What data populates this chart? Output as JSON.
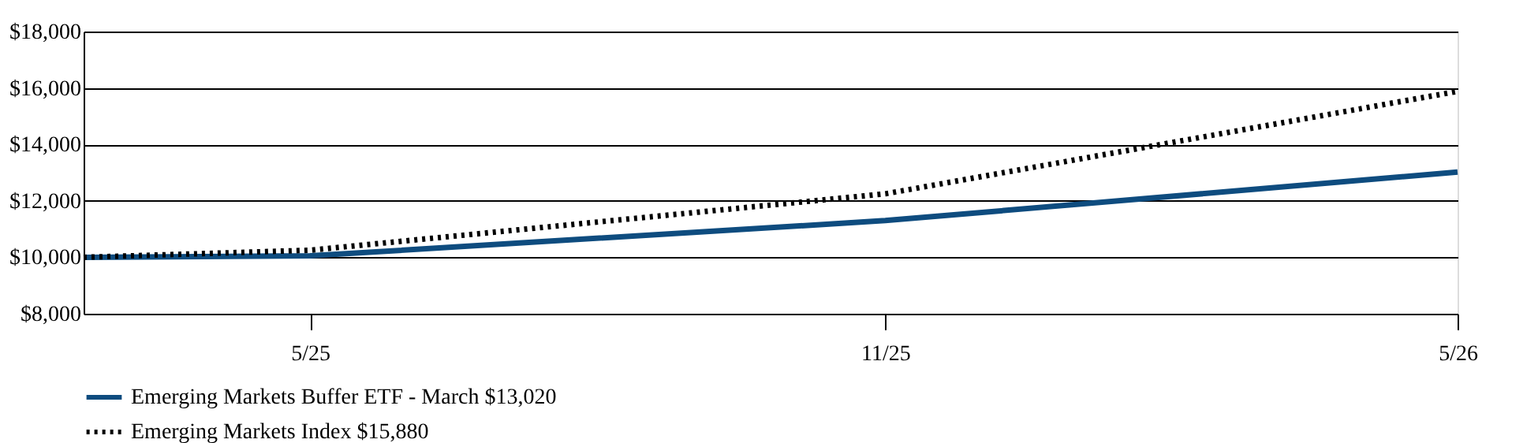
{
  "chart_data": {
    "type": "line",
    "x": [
      "2025-03-20",
      "2025-05-31",
      "2025-11-30",
      "2026-05-31"
    ],
    "series": [
      {
        "name": "Emerging Markets Buffer ETF - March $13,020",
        "color": "#0e4c7f",
        "line_style": "solid",
        "values": [
          10000,
          10050,
          11300,
          13020
        ]
      },
      {
        "name": "Emerging Markets Index $15,880",
        "color": "#000000",
        "line_style": "dotted",
        "values": [
          10000,
          10250,
          12250,
          15880
        ]
      }
    ],
    "xlim": [
      "2025-03-20",
      "2026-05-31"
    ],
    "xticks": [
      {
        "value": "2025-05-31",
        "label": "5/25"
      },
      {
        "value": "2025-11-30",
        "label": "11/25"
      },
      {
        "value": "2026-05-31",
        "label": "5/26"
      }
    ],
    "ylim": [
      8000,
      18000
    ],
    "yticks": [
      {
        "value": 8000,
        "label": "$8,000"
      },
      {
        "value": 10000,
        "label": "$10,000"
      },
      {
        "value": 12000,
        "label": "$12,000"
      },
      {
        "value": 14000,
        "label": "$14,000"
      },
      {
        "value": 16000,
        "label": "$16,000"
      },
      {
        "value": 18000,
        "label": "$18,000"
      }
    ],
    "grid": "y",
    "legend": "bottom"
  }
}
